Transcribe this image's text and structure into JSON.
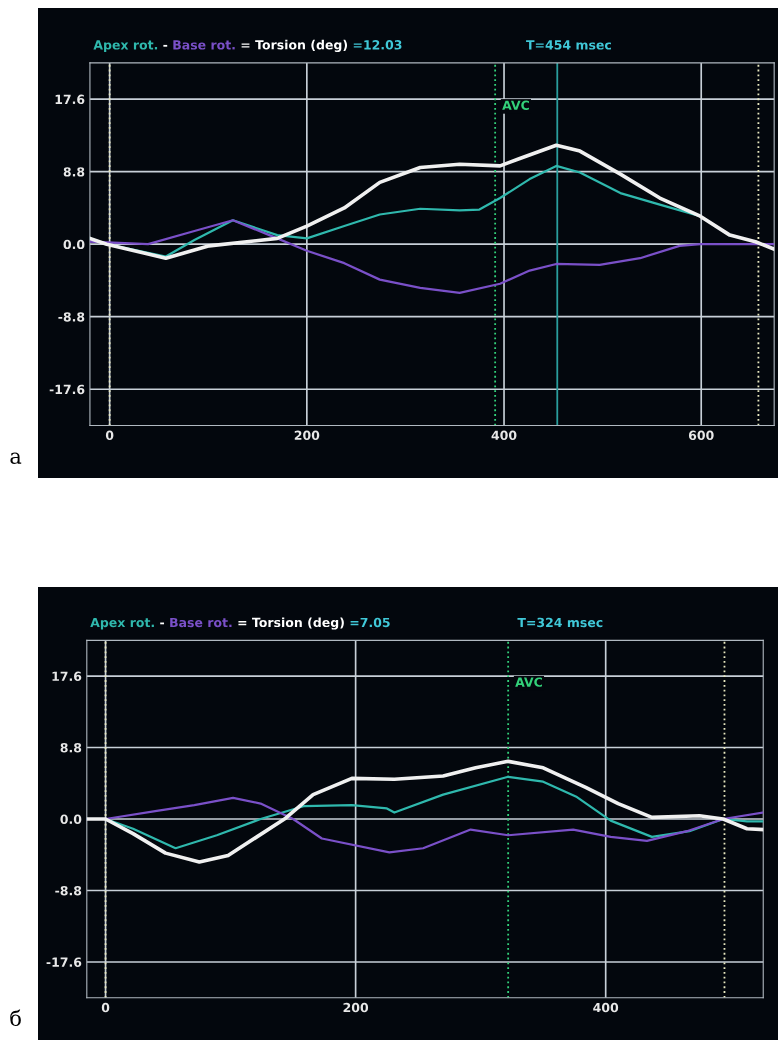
{
  "chart_data": [
    {
      "type": "line",
      "xlim": [
        -20,
        674
      ],
      "ylim": [
        -22,
        22
      ],
      "xticks": [
        0,
        200,
        400,
        600
      ],
      "yticks": [
        {
          "value": 17.6,
          "label": "17.6"
        },
        {
          "value": 8.8,
          "label": "8.8"
        },
        {
          "value": 0,
          "label": "0.0"
        },
        {
          "value": -8.8,
          "label": "-8.8"
        },
        {
          "value": -17.6,
          "label": "-17.6"
        }
      ],
      "grid": true,
      "legend": "top left",
      "annotations": [
        "-",
        "=",
        "=12.03",
        "T=454 msec",
        "a"
      ],
      "ref_lines": [
        {
          "axis": "x",
          "value": 391,
          "label": "AVC",
          "color": "#33d17a",
          "line_style": "dotted"
        },
        {
          "axis": "x",
          "value": 454,
          "label": null,
          "color": "#2a9d9d",
          "line_style": "solid"
        },
        {
          "axis": "x",
          "value": 0,
          "label": null,
          "color": "#e8e8c0",
          "line_style": "dotted"
        },
        {
          "axis": "x",
          "value": 658,
          "label": null,
          "color": "#e8e8c0",
          "line_style": "dotted"
        }
      ],
      "series": [
        {
          "name": "Apex rot.",
          "color": "#2fb8ad",
          "x": [
            -20,
            -3,
            57,
            86,
            125,
            170,
            200,
            238,
            274,
            315,
            355,
            375,
            396,
            426,
            453,
            477,
            518,
            558,
            599,
            629
          ],
          "values": [
            0.7,
            0,
            -1.5,
            0.5,
            2.9,
            1.1,
            0.7,
            2.2,
            3.6,
            4.3,
            4.1,
            4.2,
            5.6,
            7.9,
            9.5,
            8.7,
            6.2,
            4.8,
            3.4,
            1.1
          ]
        },
        {
          "name": "Base rot.",
          "color": "#7a50c8",
          "x": [
            -20,
            39,
            86,
            125,
            162,
            200,
            238,
            274,
            315,
            355,
            396,
            426,
            453,
            497,
            538,
            578,
            599,
            674
          ],
          "values": [
            0.3,
            0,
            1.6,
            2.9,
            1.1,
            -0.8,
            -2.3,
            -4.3,
            -5.3,
            -5.9,
            -4.8,
            -3.2,
            -2.4,
            -2.5,
            -1.7,
            -0.2,
            0,
            0
          ]
        },
        {
          "name": "Torsion (deg)",
          "color": "#f0f0f0",
          "x": [
            -20,
            -3,
            57,
            101,
            170,
            200,
            238,
            274,
            315,
            355,
            396,
            416,
            453,
            477,
            518,
            558,
            599,
            629,
            655,
            674
          ],
          "values": [
            0.7,
            0,
            -1.7,
            -0.2,
            0.7,
            2.2,
            4.4,
            7.5,
            9.3,
            9.7,
            9.5,
            10.4,
            12.0,
            11.3,
            8.5,
            5.6,
            3.4,
            1.1,
            0.3,
            -0.6
          ]
        }
      ]
    },
    {
      "type": "line",
      "xlim": [
        -15,
        526
      ],
      "ylim": [
        -22,
        22
      ],
      "xticks": [
        0,
        200,
        400
      ],
      "yticks": [
        {
          "value": 17.6,
          "label": "17.6"
        },
        {
          "value": 8.8,
          "label": "8.8"
        },
        {
          "value": 0,
          "label": "0.0"
        },
        {
          "value": -8.8,
          "label": "-8.8"
        },
        {
          "value": -17.6,
          "label": "-17.6"
        }
      ],
      "grid": true,
      "legend": "top left",
      "annotations": [
        "-",
        "=",
        "=7.05",
        "T=324 msec",
        "б"
      ],
      "ref_lines": [
        {
          "axis": "x",
          "value": 322,
          "label": "AVC",
          "color": "#33d17a",
          "line_style": "dotted"
        },
        {
          "axis": "x",
          "value": 0,
          "label": null,
          "color": "#e8e8c0",
          "line_style": "dotted"
        },
        {
          "axis": "x",
          "value": 495,
          "label": null,
          "color": "#e8e8c0",
          "line_style": "dotted"
        }
      ],
      "series": [
        {
          "name": "Apex rot.",
          "color": "#2fb8ad",
          "x": [
            -15,
            0,
            22,
            56,
            89,
            124,
            159,
            197,
            225,
            231,
            270,
            322,
            350,
            377,
            404,
            437,
            467,
            494,
            513,
            526
          ],
          "values": [
            0,
            0,
            -1.2,
            -3.6,
            -2.0,
            0,
            1.6,
            1.7,
            1.3,
            0.8,
            3.0,
            5.2,
            4.6,
            2.7,
            -0.2,
            -2.2,
            -1.5,
            0,
            -0.3,
            -0.3
          ]
        },
        {
          "name": "Base rot.",
          "color": "#7a50c8",
          "x": [
            -15,
            0,
            41,
            71,
            102,
            124,
            150,
            173,
            227,
            254,
            292,
            322,
            374,
            404,
            433,
            465,
            494,
            526
          ],
          "values": [
            0,
            0,
            1.0,
            1.7,
            2.6,
            1.9,
            0,
            -2.4,
            -4.1,
            -3.6,
            -1.3,
            -2.0,
            -1.3,
            -2.2,
            -2.7,
            -1.5,
            0,
            0.8
          ]
        },
        {
          "name": "Torsion (deg)",
          "color": "#f0f0f0",
          "x": [
            -15,
            0,
            22,
            48,
            75,
            98,
            121,
            144,
            166,
            197,
            231,
            270,
            296,
            322,
            350,
            384,
            410,
            437,
            475,
            494,
            513,
            526
          ],
          "values": [
            0,
            0,
            -1.8,
            -4.2,
            -5.3,
            -4.5,
            -2.2,
            0.1,
            3.0,
            5.0,
            4.9,
            5.3,
            6.3,
            7.1,
            6.3,
            3.9,
            1.9,
            0.2,
            0.4,
            0,
            -1.2,
            -1.3
          ]
        }
      ]
    }
  ]
}
